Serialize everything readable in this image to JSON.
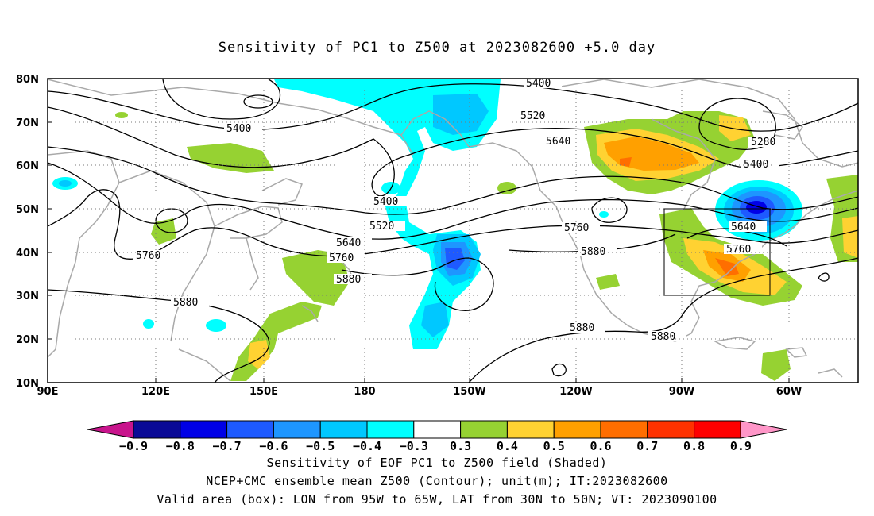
{
  "title": "Sensitivity of PC1 to Z500 at 2023082600 +5.0 day",
  "lat_labels": [
    "80N",
    "70N",
    "60N",
    "50N",
    "40N",
    "30N",
    "20N",
    "10N"
  ],
  "lon_labels": [
    "90E",
    "120E",
    "150E",
    "180",
    "150W",
    "120W",
    "90W",
    "60W"
  ],
  "contour_labels": {
    "c5400_a": "5400",
    "c5400_b": "5400",
    "c5400_c": "5400",
    "c5400_d": "5400",
    "c5520_a": "5520",
    "c5520_b": "5520",
    "c5640_a": "5640",
    "c5640_b": "5640",
    "c5640_c": "5640",
    "c5280": "5280",
    "c5760_a": "5760",
    "c5760_b": "5760",
    "c5760_c": "5760",
    "c5760_d": "5760",
    "c5880_a": "5880",
    "c5880_b": "5880",
    "c5880_c": "5880",
    "c5880_d": "5880",
    "c5880_e": "5880"
  },
  "colorbar": {
    "labels": [
      "−0.9",
      "−0.8",
      "−0.7",
      "−0.6",
      "−0.5",
      "−0.4",
      "−0.3",
      "0.3",
      "0.4",
      "0.5",
      "0.6",
      "0.7",
      "0.8",
      "0.9"
    ],
    "colors": [
      "#0a0a96",
      "#0000e6",
      "#1e5aff",
      "#1e96ff",
      "#00c8ff",
      "#00ffff",
      "#ffffff",
      "#96d232",
      "#ffd232",
      "#ffa000",
      "#ff6e00",
      "#ff3200",
      "#ff0000"
    ],
    "low_color": "#c8148c",
    "high_color": "#ff96c8"
  },
  "box": {
    "lon_from": "95W",
    "lon_to": "65W",
    "lat_from": "30N",
    "lat_to": "50N"
  },
  "captions": {
    "line1": "Sensitivity of EOF PC1 to Z500 field (Shaded)",
    "line2": "NCEP+CMC ensemble mean Z500 (Contour); unit(m); IT:2023082600",
    "line3": "Valid area (box): LON from 95W to 65W, LAT from 30N to 50N; VT: 2023090100"
  }
}
